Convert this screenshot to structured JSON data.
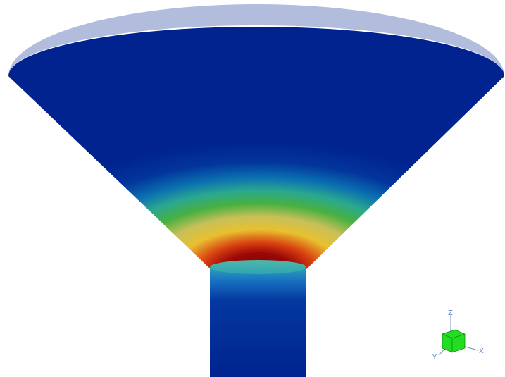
{
  "axes_triad": {
    "z": "Z",
    "x": "X",
    "y": "Y"
  }
}
